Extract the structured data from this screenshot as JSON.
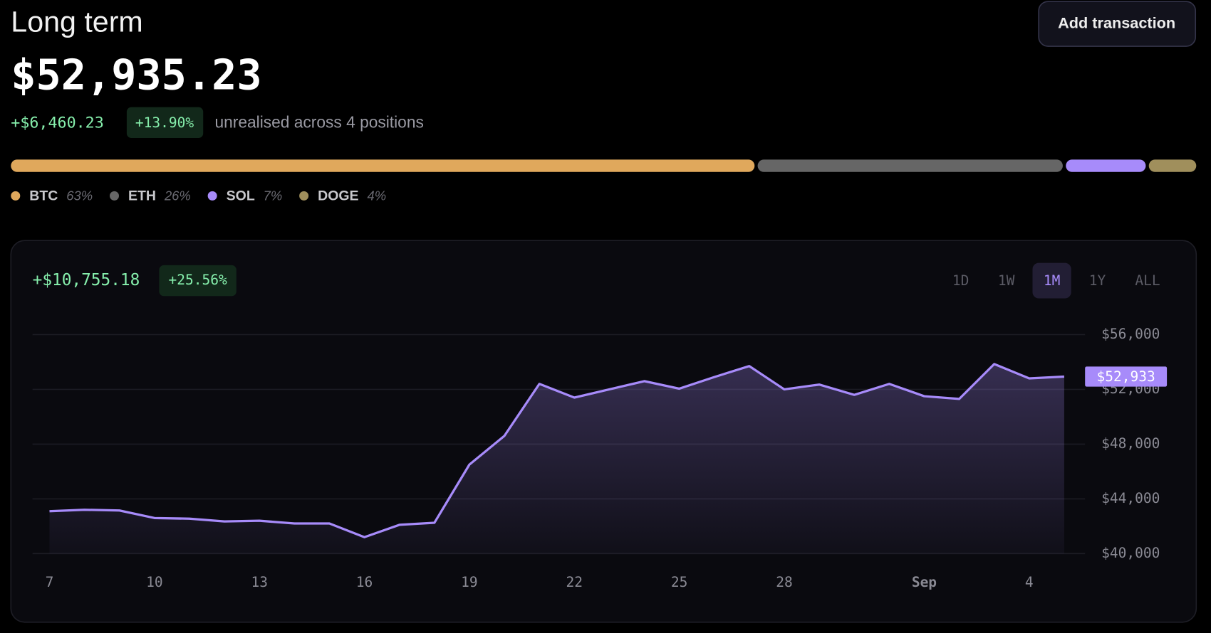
{
  "header": {
    "title": "Long term",
    "button": "Add transaction",
    "total": "$52,935.23",
    "change": "+$6,460.23",
    "change_pct": "+13.90%",
    "note": "unrealised across 4 positions"
  },
  "allocation": {
    "names": [
      "BTC",
      "ETH",
      "SOL",
      "DOGE"
    ],
    "values": [
      63,
      26,
      7,
      4
    ],
    "value_labels": [
      "63%",
      "26%",
      "7%",
      "4%"
    ],
    "colors": [
      "#e0a85c",
      "#666666",
      "#a78bfa",
      "#a08f5c"
    ]
  },
  "chart_data": {
    "type": "line",
    "change": "+$10,755.18",
    "change_pct": "+25.56%",
    "ranges": [
      "1D",
      "1W",
      "1M",
      "1Y",
      "ALL"
    ],
    "active_range": "1M",
    "color": "#a78bfa",
    "categories": [
      "7",
      null,
      null,
      "10",
      null,
      null,
      "13",
      null,
      null,
      "16",
      null,
      null,
      "19",
      null,
      null,
      "22",
      null,
      null,
      "25",
      null,
      null,
      "28",
      null,
      null,
      null,
      "Sep",
      null,
      null,
      "4",
      null
    ],
    "values": [
      43100,
      43200,
      43150,
      42600,
      42550,
      42350,
      42400,
      42200,
      42200,
      41200,
      42100,
      42250,
      46500,
      48600,
      52400,
      51400,
      52000,
      52600,
      52050,
      52900,
      53700,
      52000,
      52350,
      51600,
      52400,
      51500,
      51300,
      53850,
      52800,
      52933
    ],
    "value_labels": [
      null,
      null,
      null,
      null,
      null,
      null,
      null,
      null,
      null,
      null,
      null,
      null,
      null,
      null,
      null,
      null,
      null,
      null,
      null,
      null,
      null,
      null,
      null,
      null,
      null,
      null,
      null,
      null,
      null,
      "$52,933"
    ],
    "ylim": [
      40000,
      56000
    ],
    "yticks": [
      {
        "value": 40000,
        "label": "$40,000"
      },
      {
        "value": 44000,
        "label": "$44,000"
      },
      {
        "value": 48000,
        "label": "$48,000"
      },
      {
        "value": 52000,
        "label": "$52,000"
      },
      {
        "value": 56000,
        "label": "$56,000"
      }
    ],
    "grid": true
  }
}
